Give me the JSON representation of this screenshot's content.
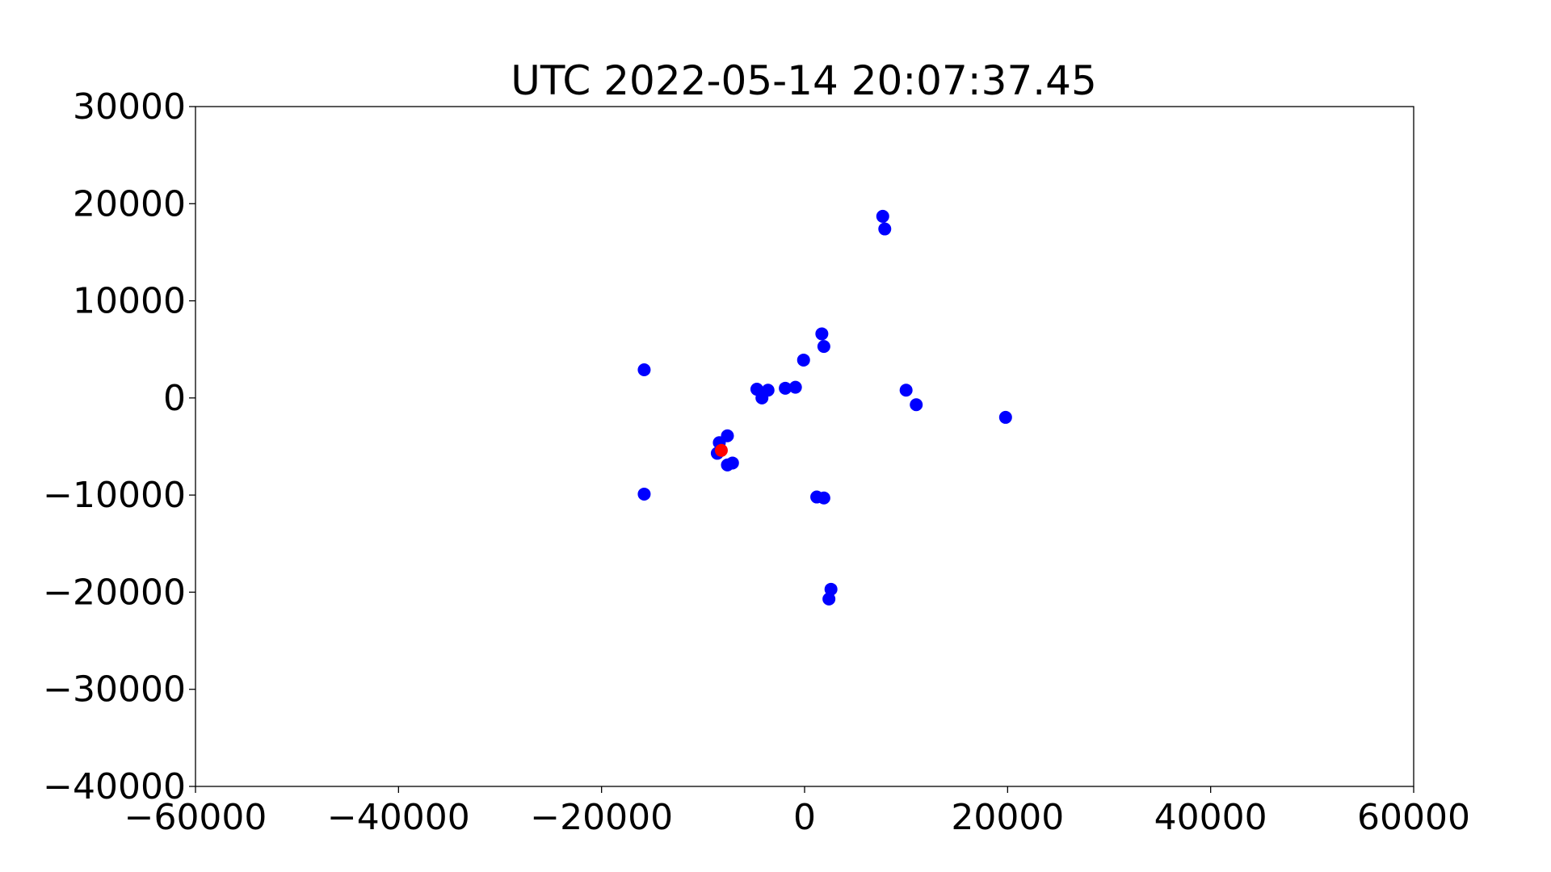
{
  "chart_data": {
    "type": "scatter",
    "title": "UTC 2022-05-14 20:07:37.45",
    "xlabel": "",
    "ylabel": "",
    "xlim": [
      -60000,
      60000
    ],
    "ylim": [
      -40000,
      30000
    ],
    "x_ticks": [
      -60000,
      -40000,
      -20000,
      0,
      20000,
      40000,
      60000
    ],
    "y_ticks": [
      -40000,
      -30000,
      -20000,
      -10000,
      0,
      10000,
      20000,
      30000
    ],
    "x_tick_labels": [
      "−60000",
      "−40000",
      "−20000",
      "0",
      "20000",
      "40000",
      "60000"
    ],
    "y_tick_labels": [
      "−40000",
      "−30000",
      "−20000",
      "−10000",
      "0",
      "10000",
      "20000",
      "30000"
    ],
    "grid": false,
    "legend": "none",
    "series": [
      {
        "color": "#0000ff",
        "points": [
          {
            "x": 7700,
            "y": 18700
          },
          {
            "x": 7900,
            "y": 17400
          },
          {
            "x": 1700,
            "y": 6600
          },
          {
            "x": 1900,
            "y": 5300
          },
          {
            "x": -100,
            "y": 3900
          },
          {
            "x": -15800,
            "y": 2900
          },
          {
            "x": -4700,
            "y": 900
          },
          {
            "x": -3600,
            "y": 800
          },
          {
            "x": -1900,
            "y": 1000
          },
          {
            "x": -900,
            "y": 1100
          },
          {
            "x": -4200,
            "y": 0
          },
          {
            "x": 10000,
            "y": 800
          },
          {
            "x": 11000,
            "y": -700
          },
          {
            "x": 19800,
            "y": -2000
          },
          {
            "x": -7600,
            "y": -3900
          },
          {
            "x": -8400,
            "y": -4600
          },
          {
            "x": -8600,
            "y": -5700
          },
          {
            "x": -7600,
            "y": -6900
          },
          {
            "x": -7100,
            "y": -6700
          },
          {
            "x": -15800,
            "y": -9900
          },
          {
            "x": 1200,
            "y": -10200
          },
          {
            "x": 1900,
            "y": -10300
          },
          {
            "x": 2600,
            "y": -19700
          },
          {
            "x": 2400,
            "y": -20700
          }
        ]
      },
      {
        "color": "#ff0000",
        "points": [
          {
            "x": -8200,
            "y": -5400
          }
        ]
      }
    ]
  }
}
